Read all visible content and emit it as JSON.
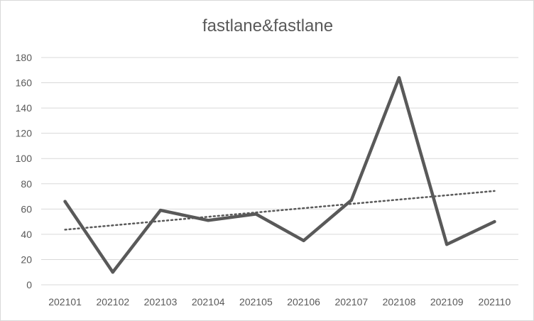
{
  "chart_data": {
    "type": "line",
    "title": "fastlane&fastlane",
    "xlabel": "",
    "ylabel": "",
    "categories": [
      "202101",
      "202102",
      "202103",
      "202104",
      "202105",
      "202106",
      "202107",
      "202108",
      "202109",
      "202110"
    ],
    "series": [
      {
        "values": [
          66,
          10,
          59,
          51,
          56,
          35,
          67,
          164,
          32,
          50
        ],
        "color": "#595959"
      }
    ],
    "trendline": {
      "type": "linear",
      "style": "dotted",
      "color": "#595959"
    },
    "ylim": [
      0,
      180
    ],
    "yticks": [
      0,
      20,
      40,
      60,
      80,
      100,
      120,
      140,
      160,
      180
    ],
    "grid": true,
    "legend": "none"
  }
}
